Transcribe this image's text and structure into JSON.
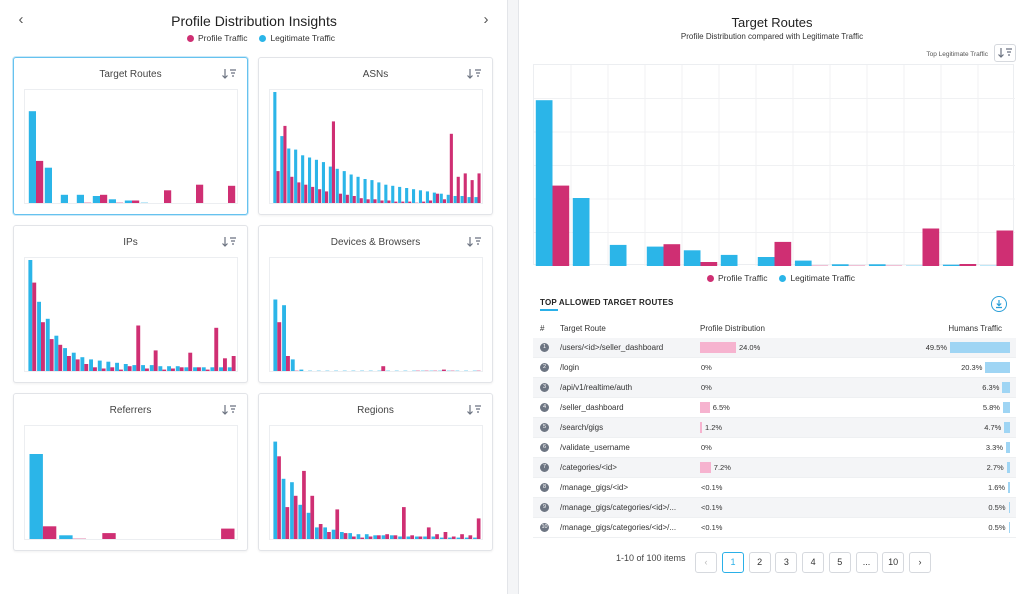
{
  "left": {
    "title": "Profile Distribution Insights",
    "prev_icon": "‹",
    "next_icon": "›",
    "legend": [
      {
        "name": "Profile Traffic",
        "color": "#cf2f73"
      },
      {
        "name": "Legitimate Traffic",
        "color": "#2bb5e8"
      }
    ],
    "cards": [
      {
        "title": "Target Routes",
        "selected": true,
        "chart_data": {
          "type": "bar",
          "series": [
            {
              "name": "Profile Traffic",
              "values": [
                39,
                0,
                0,
                2,
                9,
                2,
                4,
                1,
                13,
                0,
                18,
                0,
                17
              ]
            },
            {
              "name": "Legitimate Traffic",
              "values": [
                83,
                33,
                9,
                9,
                8,
                5,
                4,
                2,
                0,
                1,
                0,
                1,
                0
              ]
            }
          ],
          "ymax": 100
        }
      },
      {
        "title": "ASNs",
        "selected": false,
        "chart_data": {
          "type": "bar",
          "series": [
            {
              "name": "Profile Traffic",
              "values": [
                30,
                70,
                25,
                20,
                18,
                16,
                14,
                12,
                74,
                10,
                9,
                8,
                6,
                5,
                5,
                4,
                4,
                3,
                3,
                3,
                2,
                3,
                4,
                10,
                5,
                63,
                25,
                28,
                22,
                28
              ]
            },
            {
              "name": "Legitimate Traffic",
              "values": [
                100,
                61,
                50,
                49,
                44,
                42,
                40,
                38,
                34,
                32,
                30,
                27,
                25,
                23,
                22,
                20,
                18,
                17,
                16,
                15,
                14,
                13,
                12,
                11,
                10,
                9,
                8,
                8,
                7,
                7
              ]
            }
          ],
          "ymax": 100
        }
      },
      {
        "title": "IPs",
        "selected": false,
        "chart_data": {
          "type": "bar",
          "series": [
            {
              "name": "Profile Traffic",
              "values": [
                80,
                45,
                30,
                25,
                15,
                12,
                8,
                5,
                4,
                5,
                3,
                6,
                42,
                4,
                20,
                3,
                4,
                5,
                18,
                5,
                3,
                40,
                13,
                15
              ]
            },
            {
              "name": "Legitimate Traffic",
              "values": [
                100,
                63,
                48,
                33,
                22,
                18,
                14,
                12,
                11,
                10,
                9,
                8,
                7,
                7,
                7,
                6,
                6,
                6,
                5,
                5,
                5,
                5,
                5,
                5
              ]
            }
          ],
          "ymax": 100
        }
      },
      {
        "title": "Devices & Browsers",
        "selected": false,
        "chart_data": {
          "type": "bar",
          "series": [
            {
              "name": "Profile Traffic",
              "values": [
                45,
                15,
                2,
                1,
                1,
                1,
                1,
                1,
                1,
                1,
                1,
                1,
                6,
                1,
                1,
                1,
                2,
                2,
                2,
                3,
                2,
                1,
                1,
                2
              ]
            },
            {
              "name": "Legitimate Traffic",
              "values": [
                65,
                60,
                12,
                3,
                2,
                2,
                2,
                2,
                2,
                2,
                2,
                2,
                2,
                2,
                2,
                2,
                2,
                2,
                2,
                2,
                2,
                2,
                2,
                2
              ]
            }
          ],
          "ymax": 100
        }
      },
      {
        "title": "Referrers",
        "selected": false,
        "chart_data": {
          "type": "bar",
          "series": [
            {
              "name": "Profile Traffic",
              "values": [
                13,
                2,
                7,
                0,
                0,
                0,
                11
              ]
            },
            {
              "name": "Legitimate Traffic",
              "values": [
                77,
                5,
                1,
                1,
                1,
                1,
                1
              ]
            }
          ],
          "ymax": 100
        }
      },
      {
        "title": "Regions",
        "selected": false,
        "chart_data": {
          "type": "bar",
          "series": [
            {
              "name": "Profile Traffic",
              "values": [
                75,
                30,
                40,
                62,
                40,
                15,
                8,
                28,
                7,
                4,
                3,
                4,
                5,
                6,
                5,
                30,
                5,
                4,
                12,
                6,
                8,
                4,
                6,
                5,
                20
              ]
            },
            {
              "name": "Legitimate Traffic",
              "values": [
                88,
                55,
                52,
                32,
                25,
                12,
                12,
                10,
                8,
                7,
                6,
                6,
                5,
                5,
                5,
                4,
                4,
                4,
                4,
                4,
                3,
                3,
                3,
                3,
                3
              ]
            }
          ],
          "ymax": 100
        }
      }
    ]
  },
  "right": {
    "title": "Target Routes",
    "subtitle": "Profile Distribution compared with Legitimate Traffic",
    "sort_label": "Top Legitimate Traffic",
    "chart_data": {
      "type": "bar",
      "series": [
        {
          "name": "Profile Traffic",
          "values": [
            24.0,
            0,
            0,
            6.5,
            1.2,
            0,
            7.2,
            0.1,
            0.1,
            0.1,
            11.2,
            0.6,
            10.6
          ]
        },
        {
          "name": "Legitimate Traffic",
          "values": [
            49.5,
            20.3,
            6.3,
            5.8,
            4.7,
            3.3,
            2.7,
            1.6,
            0.5,
            0.5,
            0.1,
            0.4,
            0.1
          ]
        }
      ],
      "ymax": 60,
      "grid": true,
      "legend_position": "bottom"
    },
    "legend": [
      {
        "name": "Profile Traffic",
        "color": "#cf2f73"
      },
      {
        "name": "Legitimate Traffic",
        "color": "#2bb5e8"
      }
    ],
    "table": {
      "heading": "TOP ALLOWED TARGET ROUTES",
      "columns": [
        "#",
        "Target Route",
        "Profile Distribution",
        "Humans Traffic"
      ],
      "rows": [
        {
          "n": "1",
          "route": "/users/<id>/seller_dashboard",
          "profile": "24.0%",
          "profile_pct": 24.0,
          "human": "49.5%",
          "human_pct": 49.5
        },
        {
          "n": "2",
          "route": "/login",
          "profile": "0%",
          "profile_pct": 0,
          "human": "20.3%",
          "human_pct": 20.3
        },
        {
          "n": "3",
          "route": "/api/v1/realtime/auth",
          "profile": "0%",
          "profile_pct": 0,
          "human": "6.3%",
          "human_pct": 6.3
        },
        {
          "n": "4",
          "route": "/seller_dashboard",
          "profile": "6.5%",
          "profile_pct": 6.5,
          "human": "5.8%",
          "human_pct": 5.8
        },
        {
          "n": "5",
          "route": "/search/gigs",
          "profile": "1.2%",
          "profile_pct": 1.2,
          "human": "4.7%",
          "human_pct": 4.7
        },
        {
          "n": "6",
          "route": "/validate_username",
          "profile": "0%",
          "profile_pct": 0,
          "human": "3.3%",
          "human_pct": 3.3
        },
        {
          "n": "7",
          "route": "/categories/<id>",
          "profile": "7.2%",
          "profile_pct": 7.2,
          "human": "2.7%",
          "human_pct": 2.7
        },
        {
          "n": "8",
          "route": "/manage_gigs/<id>",
          "profile": "<0.1%",
          "profile_pct": 0,
          "human": "1.6%",
          "human_pct": 1.6
        },
        {
          "n": "9",
          "route": "/manage_gigs/categories/<id>/...",
          "profile": "<0.1%",
          "profile_pct": 0,
          "human": "0.5%",
          "human_pct": 0.5
        },
        {
          "n": "10",
          "route": "/manage_gigs/categories/<id>/...",
          "profile": "<0.1%",
          "profile_pct": 0,
          "human": "0.5%",
          "human_pct": 0.5
        }
      ]
    },
    "pagination": {
      "summary": "1-10 of 100 items",
      "prev": "‹",
      "pages": [
        "1",
        "2",
        "3",
        "4",
        "5",
        "...",
        "10"
      ],
      "active": "1",
      "next": "›"
    }
  },
  "colors": {
    "profile": "#cf2f73",
    "legit": "#2bb5e8",
    "profile_light": "#f6b3cf",
    "legit_light": "#9fd5f4"
  }
}
